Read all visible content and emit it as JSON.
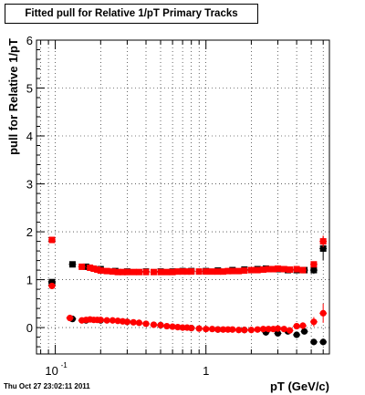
{
  "title": "Fitted pull for Relative 1/pT  Primary Tracks",
  "footer_text": "Thu Oct 27 23:02:11 2011",
  "chart_data": {
    "type": "scatter",
    "title": "Fitted pull for Relative 1/pT  Primary Tracks",
    "xlabel": "pT (GeV/c)",
    "ylabel": "pull for Relative 1/pT",
    "xscale": "log",
    "xlim": [
      0.075,
      6.6
    ],
    "ylim": [
      -0.55,
      6.0
    ],
    "x_tick_labels": [
      {
        "x": 0.1,
        "base": "10",
        "exp": "-1"
      },
      {
        "x": 1,
        "base": "1",
        "exp": ""
      }
    ],
    "y_tick_labels": [
      "0",
      "1",
      "2",
      "3",
      "4",
      "5",
      "6"
    ],
    "y_tick_values": [
      0,
      1,
      2,
      3,
      4,
      5,
      6
    ],
    "grid": true,
    "series": [
      {
        "role": "sigma-black",
        "color": "#000000",
        "x": [
          0.095,
          0.13,
          0.16,
          0.2,
          0.25,
          0.3,
          0.4,
          0.5,
          0.6,
          0.7,
          0.8,
          1.0,
          1.2,
          1.5,
          1.8,
          2.2,
          2.5,
          3.0,
          3.5,
          4.0,
          4.5,
          5.2,
          6.0
        ],
        "y": [
          0.95,
          1.32,
          1.27,
          1.22,
          1.18,
          1.17,
          1.17,
          1.17,
          1.17,
          1.18,
          1.18,
          1.18,
          1.19,
          1.2,
          1.21,
          1.22,
          1.23,
          1.22,
          1.2,
          1.2,
          1.2,
          1.2,
          1.65
        ],
        "yerr": [
          0.06,
          0.03,
          0.02,
          0.02,
          0.02,
          0.02,
          0.02,
          0.02,
          0.02,
          0.02,
          0.02,
          0.02,
          0.02,
          0.02,
          0.02,
          0.03,
          0.03,
          0.03,
          0.03,
          0.04,
          0.05,
          0.08,
          0.25
        ]
      },
      {
        "role": "sigma-red",
        "color": "#ff0000",
        "x": [
          0.095,
          0.15,
          0.17,
          0.18,
          0.19,
          0.2,
          0.22,
          0.24,
          0.26,
          0.28,
          0.3,
          0.33,
          0.36,
          0.4,
          0.45,
          0.5,
          0.55,
          0.6,
          0.65,
          0.7,
          0.75,
          0.8,
          0.9,
          1.0,
          1.1,
          1.2,
          1.3,
          1.4,
          1.5,
          1.65,
          1.8,
          2.0,
          2.2,
          2.4,
          2.6,
          2.8,
          3.0,
          3.3,
          3.6,
          4.0,
          4.4,
          5.2,
          6.0
        ],
        "y": [
          1.83,
          1.27,
          1.25,
          1.23,
          1.21,
          1.19,
          1.18,
          1.17,
          1.16,
          1.16,
          1.16,
          1.16,
          1.16,
          1.16,
          1.16,
          1.16,
          1.16,
          1.16,
          1.17,
          1.17,
          1.17,
          1.17,
          1.17,
          1.17,
          1.17,
          1.17,
          1.17,
          1.18,
          1.18,
          1.18,
          1.19,
          1.2,
          1.2,
          1.21,
          1.22,
          1.22,
          1.23,
          1.22,
          1.21,
          1.22,
          1.2,
          1.32,
          1.8
        ],
        "yerr": [
          0.03,
          0.02,
          0.02,
          0.02,
          0.02,
          0.02,
          0.02,
          0.02,
          0.02,
          0.02,
          0.02,
          0.02,
          0.02,
          0.02,
          0.02,
          0.02,
          0.02,
          0.02,
          0.02,
          0.02,
          0.02,
          0.02,
          0.02,
          0.02,
          0.02,
          0.02,
          0.02,
          0.02,
          0.02,
          0.02,
          0.02,
          0.02,
          0.02,
          0.02,
          0.02,
          0.02,
          0.02,
          0.02,
          0.03,
          0.03,
          0.04,
          0.06,
          0.12
        ]
      },
      {
        "role": "mean-black",
        "color": "#000000",
        "x": [
          0.095,
          0.13,
          0.16,
          0.2,
          0.3,
          0.5,
          0.8,
          1.2,
          1.8,
          2.5,
          3.0,
          3.5,
          4.0,
          4.5,
          5.2,
          6.0
        ],
        "y": [
          0.93,
          0.18,
          0.15,
          0.15,
          0.12,
          0.05,
          -0.01,
          -0.04,
          -0.05,
          -0.1,
          -0.12,
          -0.08,
          -0.15,
          -0.08,
          -0.3,
          -0.3
        ],
        "yerr": [
          0.05,
          0.02,
          0.02,
          0.02,
          0.02,
          0.02,
          0.02,
          0.02,
          0.02,
          0.03,
          0.04,
          0.04,
          0.05,
          0.06,
          0.05,
          0.07
        ]
      },
      {
        "role": "mean-red",
        "color": "#ff0000",
        "x": [
          0.095,
          0.125,
          0.15,
          0.16,
          0.17,
          0.18,
          0.19,
          0.2,
          0.22,
          0.24,
          0.26,
          0.28,
          0.3,
          0.33,
          0.36,
          0.4,
          0.45,
          0.5,
          0.55,
          0.6,
          0.65,
          0.7,
          0.75,
          0.8,
          0.9,
          1.0,
          1.1,
          1.2,
          1.3,
          1.4,
          1.5,
          1.65,
          1.8,
          2.0,
          2.2,
          2.4,
          2.6,
          2.8,
          3.0,
          3.3,
          3.6,
          4.0,
          4.4,
          5.2,
          6.0
        ],
        "y": [
          0.87,
          0.2,
          0.15,
          0.16,
          0.17,
          0.16,
          0.16,
          0.16,
          0.15,
          0.15,
          0.14,
          0.13,
          0.12,
          0.11,
          0.1,
          0.08,
          0.06,
          0.05,
          0.03,
          0.02,
          0.01,
          0.0,
          0.0,
          -0.01,
          -0.02,
          -0.03,
          -0.03,
          -0.04,
          -0.04,
          -0.04,
          -0.04,
          -0.05,
          -0.05,
          -0.05,
          -0.04,
          -0.03,
          -0.03,
          -0.03,
          -0.02,
          -0.03,
          -0.06,
          0.03,
          0.04,
          0.12,
          0.3
        ],
        "yerr": [
          0.03,
          0.02,
          0.02,
          0.02,
          0.02,
          0.02,
          0.02,
          0.02,
          0.02,
          0.02,
          0.02,
          0.02,
          0.02,
          0.02,
          0.02,
          0.02,
          0.02,
          0.02,
          0.02,
          0.02,
          0.02,
          0.02,
          0.02,
          0.02,
          0.02,
          0.02,
          0.02,
          0.02,
          0.02,
          0.02,
          0.02,
          0.02,
          0.02,
          0.02,
          0.02,
          0.02,
          0.02,
          0.03,
          0.03,
          0.03,
          0.04,
          0.05,
          0.07,
          0.1,
          0.2
        ]
      }
    ]
  }
}
